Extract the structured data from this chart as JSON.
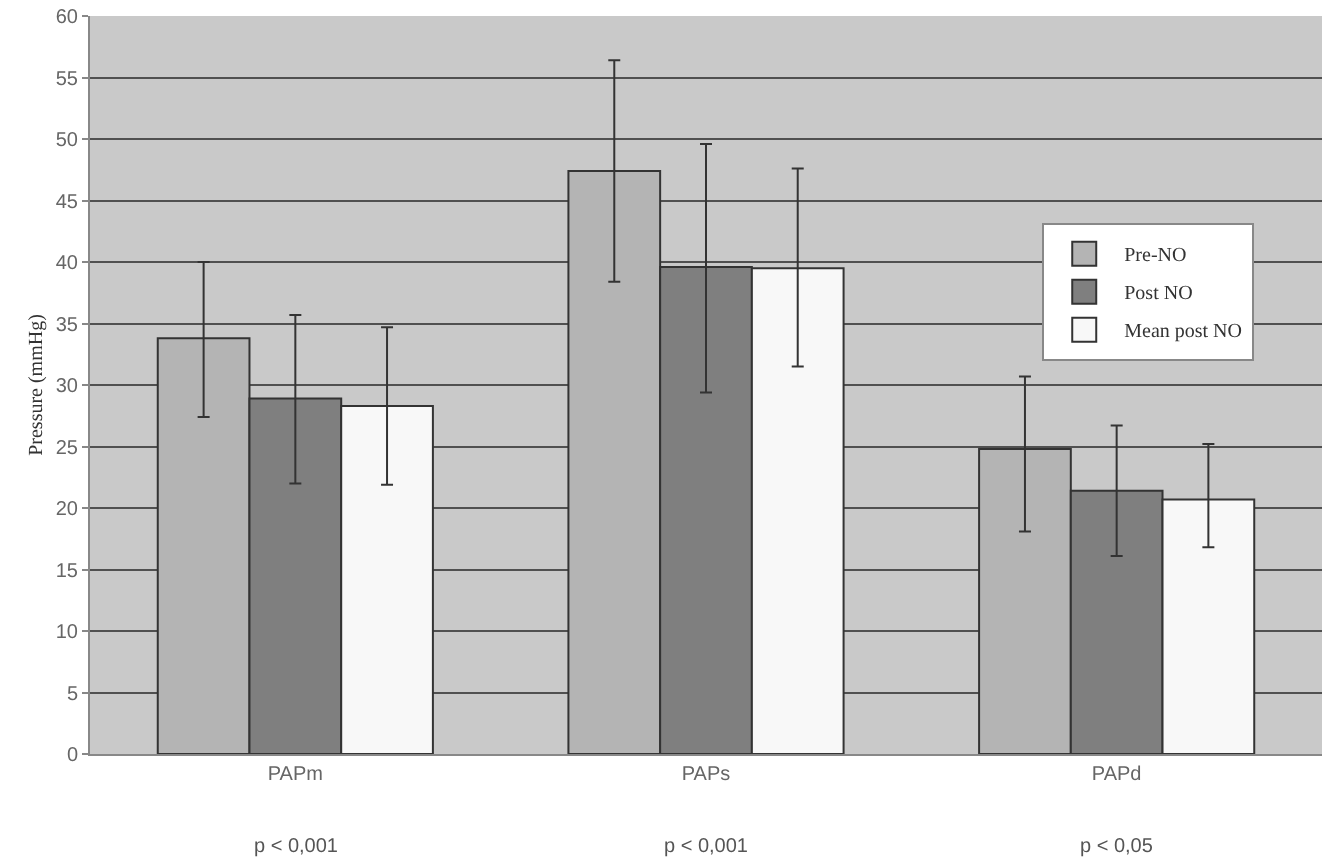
{
  "chart_data": {
    "type": "bar",
    "ylabel": "Pressure (mmHg)",
    "categories": [
      "PAPm",
      "PAPs",
      "PAPd"
    ],
    "series": [
      {
        "name": "Pre-NO",
        "color": "#b4b4b4",
        "values": [
          33.8,
          47.4,
          24.8
        ],
        "errors": [
          [
            27.4,
            40.0
          ],
          [
            38.4,
            56.4
          ],
          [
            18.1,
            30.7
          ]
        ]
      },
      {
        "name": "Post NO",
        "color": "#7f7f7f",
        "values": [
          28.9,
          39.6,
          21.4
        ],
        "errors": [
          [
            22.0,
            35.7
          ],
          [
            29.4,
            49.6
          ],
          [
            16.1,
            26.7
          ]
        ]
      },
      {
        "name": "Mean post NO",
        "color": "#f8f8f8",
        "values": [
          28.3,
          39.5,
          20.7
        ],
        "errors": [
          [
            21.9,
            34.7
          ],
          [
            31.5,
            47.6
          ],
          [
            16.8,
            25.2
          ]
        ]
      }
    ],
    "ylim": [
      0,
      60
    ],
    "yticks": [
      0,
      5,
      10,
      15,
      20,
      25,
      30,
      35,
      40,
      45,
      50,
      55,
      60
    ],
    "grid": "y",
    "legend": "right",
    "annotations": [
      "p < 0,001",
      "p < 0,001",
      "p < 0,05"
    ]
  }
}
